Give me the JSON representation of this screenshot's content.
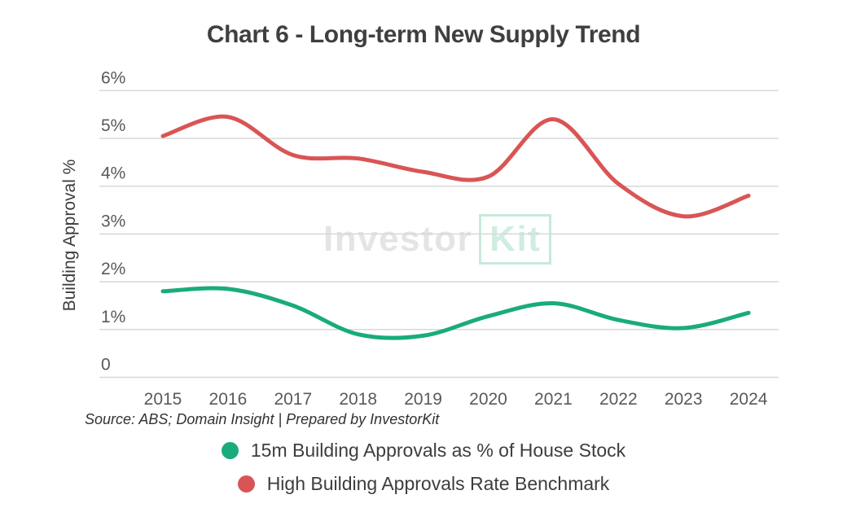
{
  "title": "Chart 6 - Long-term New Supply Trend",
  "source_note": "Source: ABS; Domain Insight | Prepared by InvestorKit",
  "watermark": {
    "part1": "Investor",
    "part2": "Kit"
  },
  "colors": {
    "series_green": "#1aab7c",
    "series_red": "#d95555",
    "grid": "#d8d8d8",
    "axis_text": "#58595b",
    "title_text": "#3f3f3f",
    "watermark_gray": "#e4e4e4",
    "watermark_green_text": "#cfede1",
    "watermark_green_border": "#c6ead9"
  },
  "chart_data": {
    "type": "line",
    "title": "Chart 6 - Long-term New Supply Trend",
    "xlabel": "",
    "ylabel": "Building Approval %",
    "ylim": [
      0,
      6
    ],
    "grid": true,
    "legend_position": "bottom",
    "categories": [
      "2015",
      "2016",
      "2017",
      "2018",
      "2019",
      "2020",
      "2021",
      "2022",
      "2023",
      "2024"
    ],
    "y_ticks": {
      "labels": [
        "6%",
        "5%",
        "4%",
        "3%",
        "2%",
        "1%",
        "0"
      ],
      "values": [
        6,
        5,
        4,
        3,
        2,
        1,
        0
      ]
    },
    "series": [
      {
        "name": "15m Building Approvals as % of House Stock",
        "color": "#1aab7c",
        "values": [
          1.8,
          1.85,
          1.5,
          0.9,
          0.87,
          1.28,
          1.55,
          1.2,
          1.03,
          1.35
        ]
      },
      {
        "name": "High Building Approvals Rate Benchmark",
        "color": "#d95555",
        "values": [
          5.05,
          5.45,
          4.65,
          4.58,
          4.3,
          4.2,
          5.4,
          4.05,
          3.37,
          3.8
        ]
      }
    ]
  }
}
